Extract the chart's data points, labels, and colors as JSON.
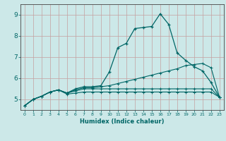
{
  "xlabel": "Humidex (Indice chaleur)",
  "bg_color": "#cce8e8",
  "grid_color": "#c4a0a0",
  "line_color": "#006666",
  "line1_y": [
    4.7,
    5.0,
    5.15,
    5.35,
    5.45,
    5.3,
    5.5,
    5.6,
    5.6,
    5.65,
    6.3,
    7.45,
    7.65,
    8.35,
    8.4,
    8.45,
    9.05,
    8.55,
    7.2,
    6.85,
    6.55,
    6.35,
    5.8,
    5.1
  ],
  "line2_y": [
    4.7,
    5.0,
    5.15,
    5.35,
    5.45,
    5.3,
    5.45,
    5.55,
    5.55,
    5.6,
    5.65,
    5.75,
    5.85,
    5.95,
    6.05,
    6.15,
    6.25,
    6.35,
    6.45,
    6.6,
    6.65,
    6.7,
    6.5,
    5.1
  ],
  "line3_y": [
    4.7,
    5.0,
    5.15,
    5.35,
    5.45,
    5.3,
    5.4,
    5.5,
    5.5,
    5.5,
    5.5,
    5.5,
    5.5,
    5.5,
    5.5,
    5.5,
    5.5,
    5.5,
    5.5,
    5.5,
    5.5,
    5.5,
    5.5,
    5.1
  ],
  "line4_y": [
    4.7,
    5.0,
    5.15,
    5.35,
    5.45,
    5.25,
    5.3,
    5.35,
    5.35,
    5.35,
    5.35,
    5.35,
    5.35,
    5.35,
    5.35,
    5.35,
    5.35,
    5.35,
    5.35,
    5.35,
    5.35,
    5.35,
    5.35,
    5.1
  ],
  "xlim": [
    -0.5,
    23.5
  ],
  "ylim": [
    4.5,
    9.5
  ],
  "yticks": [
    5,
    6,
    7,
    8,
    9
  ],
  "xticks": [
    0,
    1,
    2,
    3,
    4,
    5,
    6,
    7,
    8,
    9,
    10,
    11,
    12,
    13,
    14,
    15,
    16,
    17,
    18,
    19,
    20,
    21,
    22,
    23
  ]
}
